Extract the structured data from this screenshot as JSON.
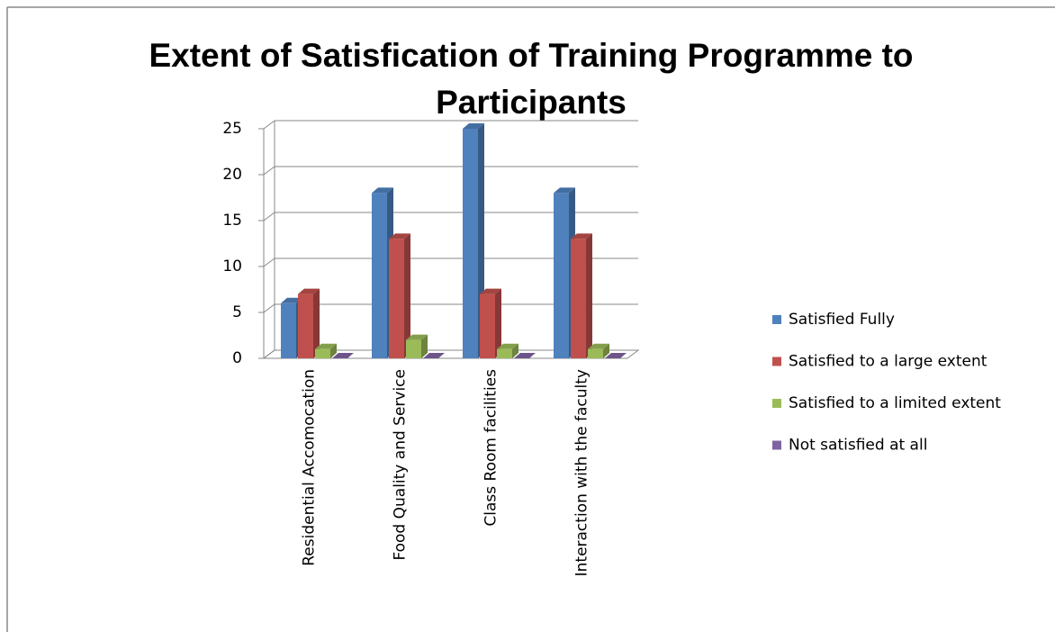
{
  "chart_data": {
    "type": "bar3d",
    "title": "Extent of Satisfication of Training Programme to Participants",
    "categories": [
      "Residential Accomocation",
      "Food Quality and Service",
      "Class Room facilities",
      "Interaction with the faculty"
    ],
    "series": [
      {
        "name": "Satisfied Fully",
        "color": "#4f81bd",
        "values": [
          6,
          18,
          25,
          18
        ]
      },
      {
        "name": "Satisfied to a large extent",
        "color": "#c0504d",
        "values": [
          7,
          13,
          7,
          13
        ]
      },
      {
        "name": "Satisfied to a limited extent",
        "color": "#9bbb59",
        "values": [
          1,
          2,
          1,
          1
        ]
      },
      {
        "name": "Not satisfied at all",
        "color": "#8064a2",
        "values": [
          0,
          0,
          0,
          0
        ]
      }
    ],
    "ylim": [
      0,
      25
    ],
    "yticks": [
      0,
      5,
      10,
      15,
      20,
      25
    ],
    "grid": true,
    "legend": "right"
  }
}
